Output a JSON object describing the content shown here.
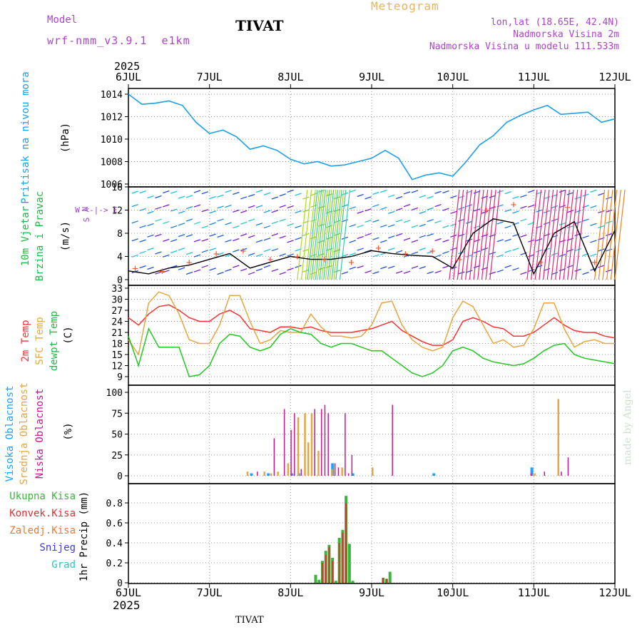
{
  "header": {
    "model_label": "Model",
    "model_name": "wrf-nmm_v3.9.1  e1km",
    "title": "TIVAT",
    "meteogram_label": "Meteogram",
    "lonlat": "lon,lat (18.65E, 42.4N)",
    "elevation": "Nadmorska Visina 2m",
    "model_elevation": "Nadmorska Visina u modelu 111.533m",
    "year_top": "2025",
    "year_bottom": "2025",
    "footer_title": "TIVAT",
    "watermark": "made by Angel"
  },
  "colors": {
    "pressure": "#1ea0e6",
    "temp2m": "#ff3030",
    "sfc_temp": "#e6a640",
    "dewpt": "#20c820",
    "wind_speed": "#000000",
    "gust_marker": "#ff5030",
    "high_cloud": "#20a0ff",
    "mid_cloud": "#e6a640",
    "low_cloud": "#c81890",
    "total_precip": "#3cb43c",
    "conv_precip": "#e03030",
    "frozen_precip": "#f07830",
    "snow": "#3c3cdc",
    "hail": "#20c8c8",
    "legend_compass": "#a040d0"
  },
  "chart_data": [
    {
      "type": "line",
      "title": "",
      "ylabel_name": "Pritisak na nivou mora",
      "ylabel_unit": "(hPa)",
      "x_ticks": [
        "6JUL",
        "7JUL",
        "8JUL",
        "9JUL",
        "10JUL",
        "11JUL",
        "12JUL"
      ],
      "ylim": [
        1006,
        1014
      ],
      "y_ticks": [
        "1006",
        "1008",
        "1010",
        "1012",
        "1014"
      ],
      "x": [
        0,
        4,
        8,
        12,
        16,
        20,
        24,
        28,
        32,
        36,
        40,
        44,
        48,
        52,
        56,
        60,
        64,
        68,
        72,
        76,
        80,
        84,
        88,
        92,
        96,
        100,
        104,
        108,
        112,
        116,
        120,
        124,
        128,
        132,
        136,
        140,
        144
      ],
      "series": [
        {
          "values": [
            1014.0,
            1013.1,
            1013.2,
            1013.4,
            1013.0,
            1011.5,
            1010.5,
            1010.8,
            1010.2,
            1009.1,
            1009.4,
            1009.0,
            1008.2,
            1007.8,
            1008.0,
            1007.6,
            1007.7,
            1008.0,
            1008.3,
            1009.0,
            1008.3,
            1006.4,
            1006.8,
            1007.0,
            1006.7,
            1008.0,
            1009.5,
            1010.3,
            1011.5,
            1012.1,
            1012.6,
            1013.0,
            1012.2,
            1012.3,
            1012.4,
            1011.5,
            1011.8
          ]
        }
      ]
    },
    {
      "type": "line",
      "title": "",
      "ylabel_name": "10m Vjetar",
      "ylabel_name2": "Brzina i Pravac",
      "ylabel_unit": "(m/s)",
      "compass": [
        "N",
        "W <-|-> E",
        "S"
      ],
      "ylim": [
        0,
        16
      ],
      "y_ticks": [
        "0",
        "4",
        "8",
        "12",
        "16"
      ],
      "x": [
        0,
        6,
        12,
        18,
        24,
        30,
        36,
        42,
        48,
        54,
        60,
        66,
        72,
        78,
        84,
        90,
        96,
        102,
        108,
        114,
        120,
        126,
        132,
        138,
        144
      ],
      "series": [
        {
          "values": [
            1.5,
            1.0,
            2.0,
            2.5,
            3.5,
            4.5,
            2.0,
            3.0,
            4.0,
            3.5,
            3.5,
            4.0,
            5.0,
            4.5,
            4.2,
            4.0,
            2.0,
            8.0,
            10.5,
            9.8,
            1.0,
            8.0,
            10.0,
            1.5,
            8.5
          ]
        }
      ],
      "gust_x": [
        2,
        10,
        18,
        26,
        34,
        42,
        50,
        58,
        66,
        74,
        82,
        90,
        98,
        106,
        114,
        122,
        130,
        138
      ],
      "gust_values": [
        2.0,
        1.5,
        3.0,
        4.5,
        5.0,
        3.5,
        4.0,
        3.5,
        3.0,
        5.5,
        4.5,
        5.0,
        3.5,
        12.0,
        13.0,
        3.0,
        12.5,
        3.0
      ]
    },
    {
      "type": "line",
      "title": "",
      "ylabel_name": "2m Temp",
      "ylabel_name2": "SFC Temp",
      "ylabel_name3": "dewpt Temp",
      "ylabel_unit": "(C)",
      "ylim": [
        7,
        33
      ],
      "y_ticks": [
        "9",
        "12",
        "15",
        "18",
        "21",
        "24",
        "27",
        "30",
        "33"
      ],
      "x": [
        0,
        3,
        6,
        9,
        12,
        15,
        18,
        21,
        24,
        27,
        30,
        33,
        36,
        39,
        42,
        45,
        48,
        51,
        54,
        57,
        60,
        63,
        66,
        69,
        72,
        75,
        78,
        81,
        84,
        87,
        90,
        93,
        96,
        99,
        102,
        105,
        108,
        111,
        114,
        117,
        120,
        123,
        126,
        129,
        132,
        135,
        138,
        141,
        144
      ],
      "series": [
        {
          "name": "2m Temp",
          "values": [
            25,
            23,
            26,
            28,
            28.5,
            27,
            25,
            24,
            24,
            26,
            27,
            25.5,
            22,
            21.5,
            21,
            22.5,
            22.5,
            22,
            22.5,
            21.5,
            21,
            21,
            21,
            21.5,
            22,
            23,
            24,
            21.5,
            20,
            18.5,
            17.5,
            17.5,
            19,
            24,
            25,
            24,
            22.5,
            22,
            20,
            20,
            21,
            23,
            25,
            23,
            21.5,
            21,
            21,
            20,
            19.5
          ]
        },
        {
          "name": "SFC Temp",
          "values": [
            19,
            15,
            29,
            32,
            31,
            26,
            19,
            18,
            18,
            23,
            31,
            31,
            24,
            18,
            19,
            21.5,
            21,
            21,
            26,
            22.5,
            20,
            20,
            19.5,
            20,
            23,
            29,
            29.5,
            23,
            19,
            17,
            16,
            17,
            25,
            29.5,
            28,
            23,
            18,
            19,
            17,
            17.5,
            22,
            29,
            29,
            22,
            17,
            18.5,
            19,
            18,
            18
          ]
        },
        {
          "name": "dewpt Temp",
          "values": [
            20,
            12,
            22,
            17,
            17,
            17,
            9,
            9.5,
            12,
            18,
            20.5,
            20,
            17,
            16,
            17,
            20.5,
            22,
            21,
            20.5,
            18,
            17,
            18,
            18,
            17,
            16,
            16,
            14,
            12,
            10,
            9,
            10,
            12,
            16,
            17,
            16,
            14,
            13,
            12.5,
            12,
            12.5,
            14,
            16,
            17.5,
            18,
            15,
            14,
            13.5,
            13,
            12.5
          ]
        }
      ]
    },
    {
      "type": "bar",
      "title": "",
      "ylabel_name": "Visoka Oblacnost",
      "ylabel_name2": "Srednja Oblacnost",
      "ylabel_name3": "Niska Oblacnost",
      "ylabel_unit": "(%)",
      "ylim": [
        0,
        100
      ],
      "y_ticks": [
        "0",
        "25",
        "50",
        "75",
        "100"
      ],
      "series": [
        {
          "name": "Visoka Oblacnost",
          "x": [
            36,
            41,
            48,
            50,
            60,
            66,
            90,
            119
          ],
          "values": [
            3,
            3,
            3,
            3,
            15,
            3,
            3,
            10
          ]
        },
        {
          "name": "Srednja Oblacnost",
          "x": [
            35,
            40,
            42,
            44,
            47,
            50,
            52,
            53,
            54,
            56,
            60,
            63,
            72,
            120,
            127
          ],
          "values": [
            5,
            5,
            3,
            5,
            15,
            70,
            75,
            40,
            75,
            30,
            8,
            10,
            10,
            3,
            92
          ]
        },
        {
          "name": "Niska Oblacnost",
          "x": [
            38,
            43,
            46,
            48,
            49,
            51,
            55,
            57,
            58,
            59,
            61,
            62,
            64,
            65,
            66,
            78,
            119,
            123,
            128,
            130
          ],
          "values": [
            5,
            45,
            80,
            55,
            75,
            8,
            80,
            80,
            85,
            75,
            15,
            10,
            75,
            3,
            25,
            85,
            3,
            5,
            5,
            22
          ]
        }
      ]
    },
    {
      "type": "bar",
      "title": "",
      "ylabel_names": [
        "Ukupna Kisa",
        "Konvek.Kisa",
        "Zaledj.Kisa",
        "Snijeg",
        "Grad"
      ],
      "ylabel_unit": "1hr Precip (mm)",
      "ylim": [
        0,
        0.9
      ],
      "y_ticks": [
        "0",
        "0.2",
        "0.4",
        "0.6",
        "0.8"
      ],
      "x_ticks": [
        "6JUL",
        "7JUL",
        "8JUL",
        "9JUL",
        "10JUL",
        "11JUL",
        "12JUL"
      ],
      "series": [
        {
          "name": "Ukupna Kisa",
          "x": [
            55,
            56,
            57,
            58,
            59,
            60,
            61,
            62,
            63,
            64,
            65,
            66,
            75,
            76,
            77
          ],
          "values": [
            0.08,
            0.03,
            0.22,
            0.32,
            0.38,
            0.25,
            0.02,
            0.45,
            0.53,
            0.87,
            0.39,
            0.02,
            0.05,
            0.04,
            0.11
          ]
        },
        {
          "name": "Konvek.Kisa",
          "x": [
            57,
            58,
            59,
            60,
            62,
            63,
            64,
            75,
            76
          ],
          "values": [
            0.2,
            0.28,
            0.36,
            0.22,
            0.4,
            0.5,
            0.8,
            0.05,
            0.04
          ]
        }
      ]
    }
  ]
}
